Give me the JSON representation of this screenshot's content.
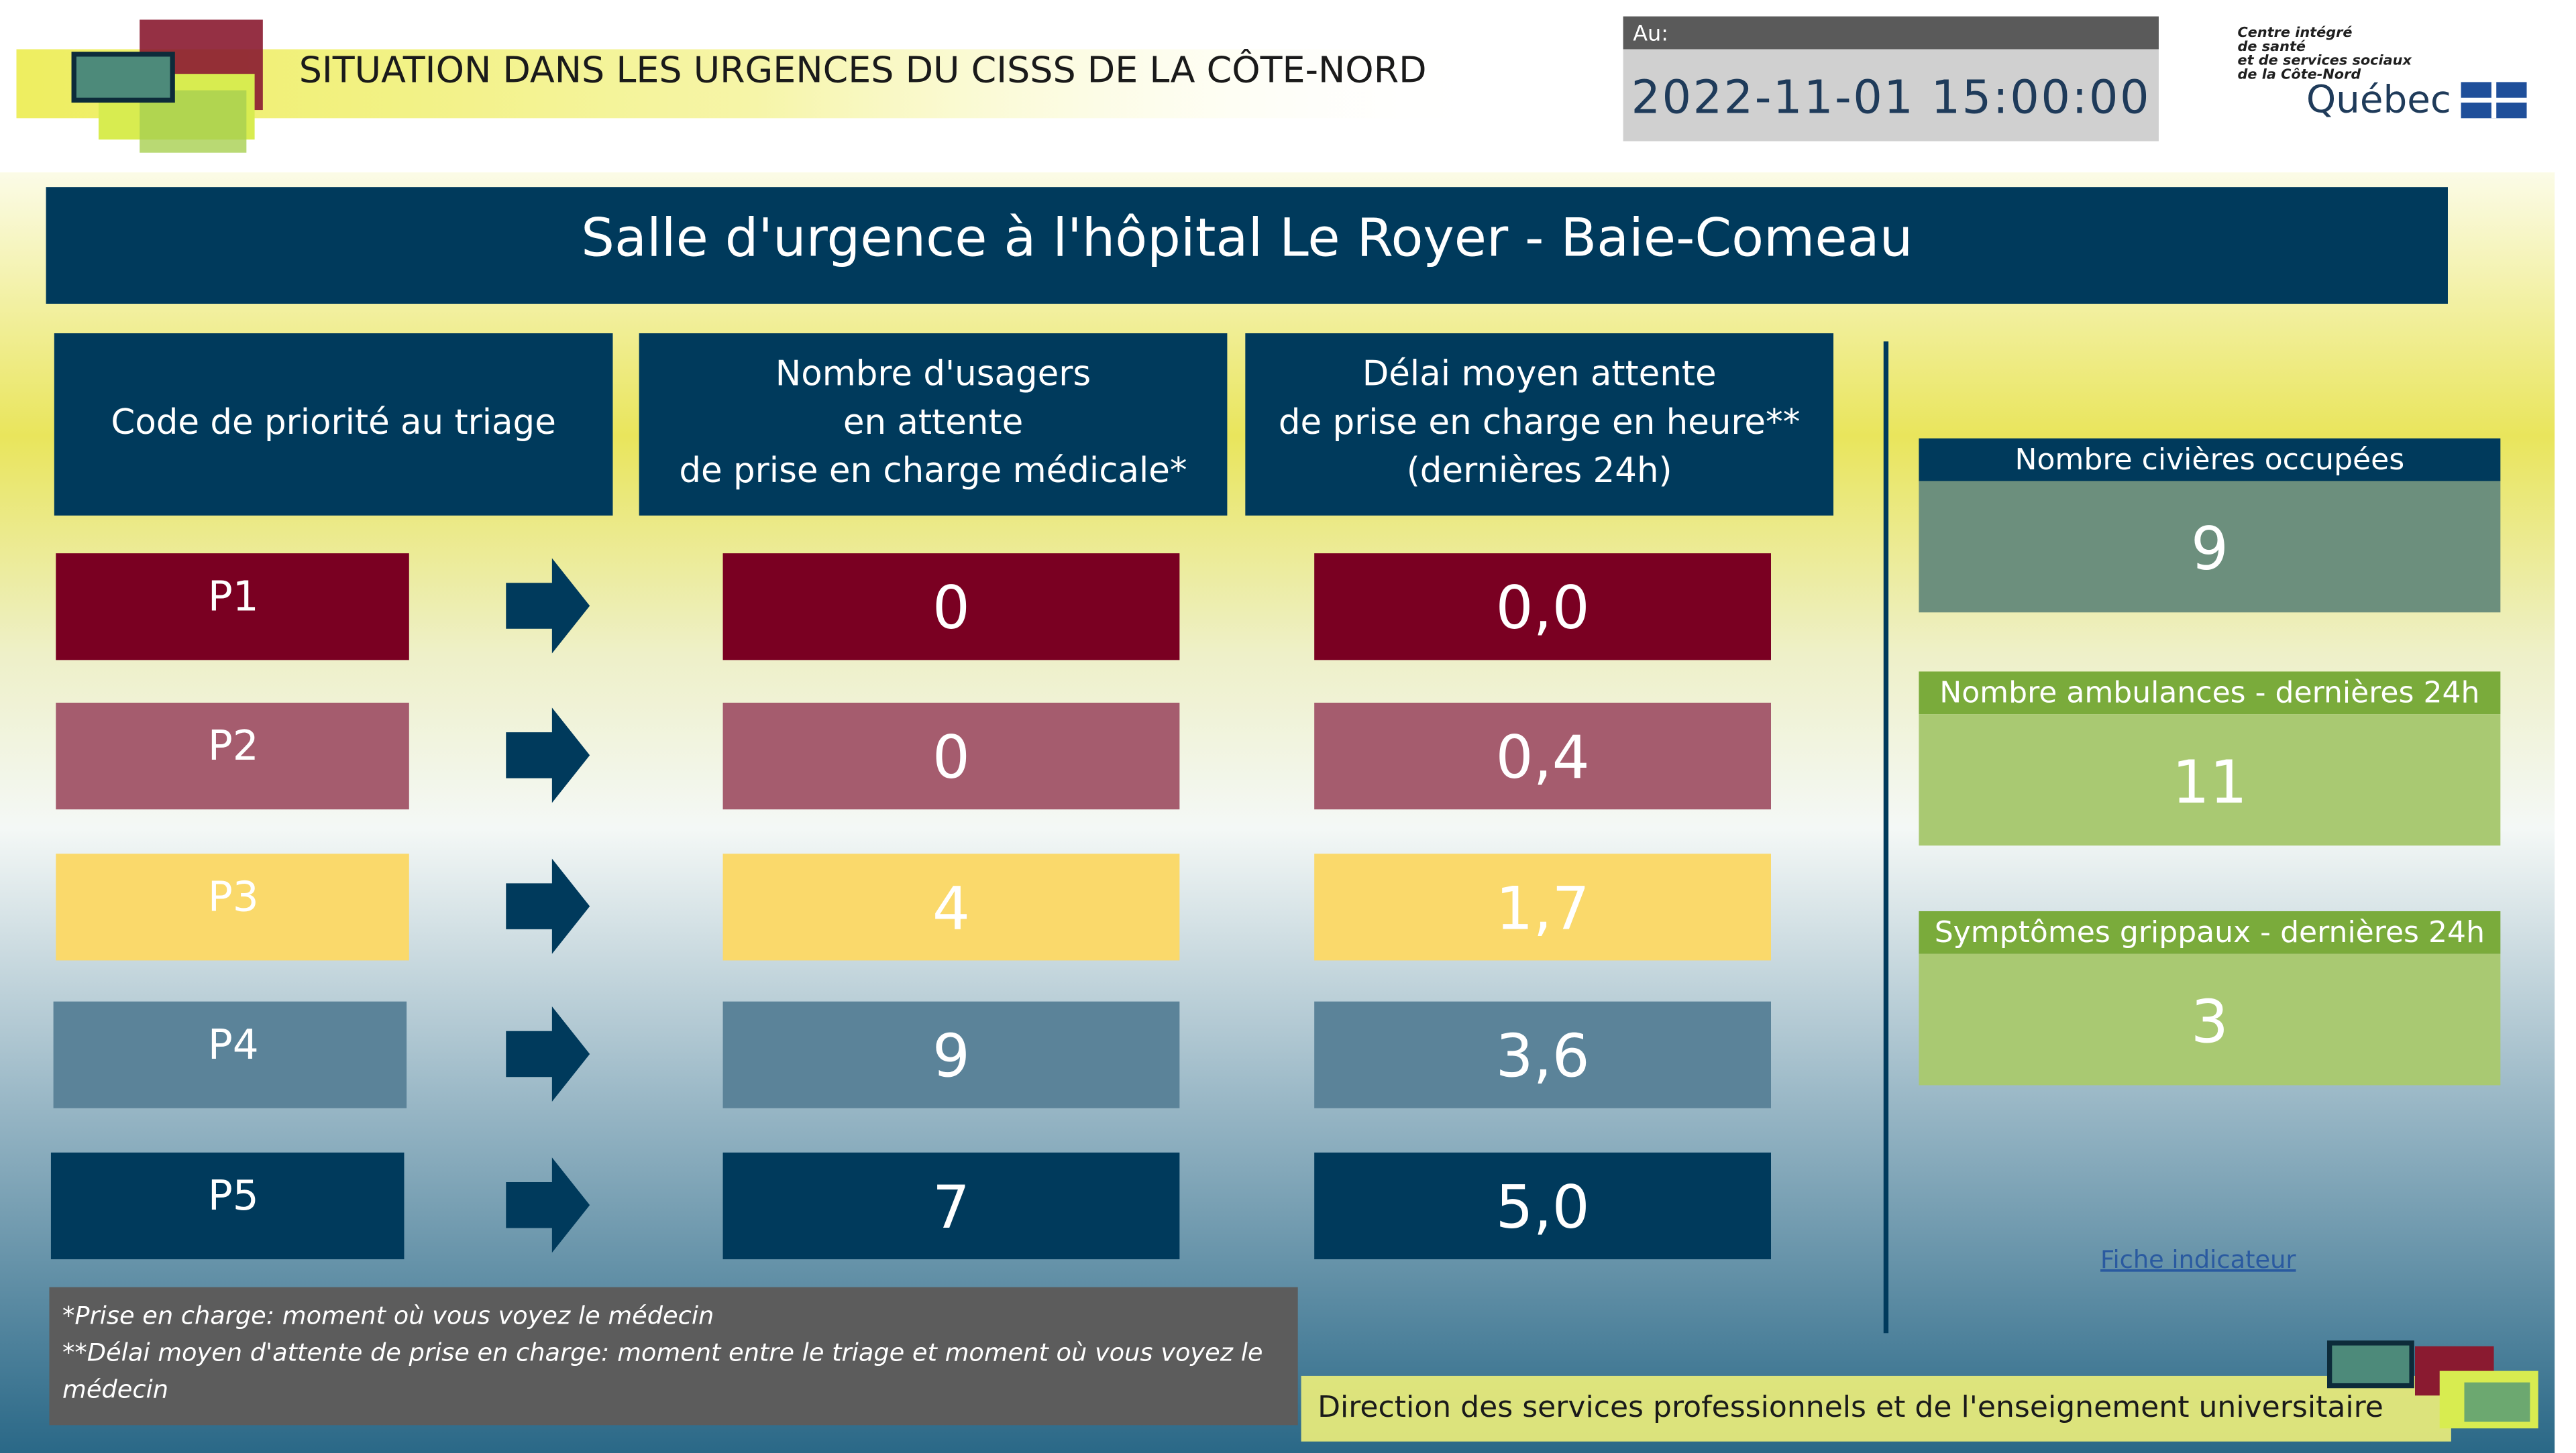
{
  "header": {
    "title": "SITUATION DANS LES URGENCES DU CISSS DE LA CÔTE-NORD",
    "timestamp_label": "Au:",
    "timestamp": "2022-11-01 15:00:00",
    "logo_lines": [
      "Centre intégré",
      "de santé",
      "et de services sociaux",
      "de la Côte-Nord"
    ],
    "logo_brand": "Québec"
  },
  "banner": "Salle d'urgence à l'hôpital Le Royer - Baie-Comeau",
  "table": {
    "headers": [
      [
        "Code de priorité au triage"
      ],
      [
        "Nombre d'usagers",
        "en attente",
        "de prise en charge médicale*"
      ],
      [
        "Délai moyen attente",
        "de prise en charge en heure**",
        "(dernières 24h)"
      ]
    ],
    "rows": [
      {
        "priority": "P1",
        "waiting": "0",
        "delay": "0,0",
        "color": "#7a0022"
      },
      {
        "priority": "P2",
        "waiting": "0",
        "delay": "0,4",
        "color": "#a55c6e"
      },
      {
        "priority": "P3",
        "waiting": "4",
        "delay": "1,7",
        "color": "#fad96b"
      },
      {
        "priority": "P4",
        "waiting": "9",
        "delay": "3,6",
        "color": "#5b8399"
      },
      {
        "priority": "P5",
        "waiting": "7",
        "delay": "5,0",
        "color": "#003a5c"
      }
    ]
  },
  "cards": [
    {
      "label": "Nombre civières occupées",
      "value": "9",
      "header_color": "#003a5c",
      "body_color": "#6c8f7d"
    },
    {
      "label": "Nombre ambulances - dernières 24h",
      "value": "11",
      "header_color": "#7aab3b",
      "body_color": "#a9c972"
    },
    {
      "label": "Symptômes grippaux - dernières 24h",
      "value": "3",
      "header_color": "#7aab3b",
      "body_color": "#a9c972"
    }
  ],
  "link": "Fiche indicateur",
  "footnotes": [
    "*Prise en charge: moment où vous voyez le médecin",
    "**Délai moyen d'attente de prise en charge: moment entre le triage et moment où vous voyez le",
    "médecin"
  ],
  "footer": "Direction des services professionnels et de l'enseignement universitaire"
}
